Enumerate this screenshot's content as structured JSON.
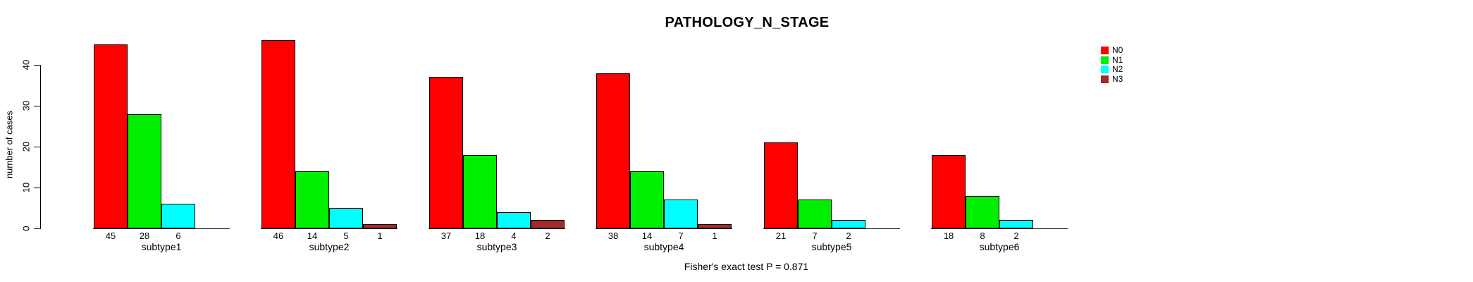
{
  "title": "PATHOLOGY_N_STAGE",
  "ylabel": "number of cases",
  "caption": "Fisher's exact test P = 0.871",
  "legend": [
    {
      "label": "N0",
      "color": "#FF0000"
    },
    {
      "label": "N1",
      "color": "#00EE00"
    },
    {
      "label": "N2",
      "color": "#00FFFF"
    },
    {
      "label": "N3",
      "color": "#A52A2A"
    }
  ],
  "chart_data": {
    "type": "bar",
    "title": "PATHOLOGY_N_STAGE",
    "xlabel": "",
    "ylabel": "number of cases",
    "ylim": [
      0,
      46
    ],
    "yticks": [
      0,
      10,
      20,
      30,
      40
    ],
    "grid": false,
    "legend_position": "right",
    "categories": [
      "subtype1",
      "subtype2",
      "subtype3",
      "subtype4",
      "subtype5",
      "subtype6"
    ],
    "series": [
      {
        "name": "N0",
        "color": "#FF0000",
        "values": [
          45,
          46,
          37,
          38,
          21,
          18
        ]
      },
      {
        "name": "N1",
        "color": "#00EE00",
        "values": [
          28,
          14,
          18,
          14,
          7,
          8
        ]
      },
      {
        "name": "N2",
        "color": "#00FFFF",
        "values": [
          6,
          5,
          4,
          7,
          2,
          2
        ]
      },
      {
        "name": "N3",
        "color": "#A52A2A",
        "values": [
          0,
          1,
          2,
          1,
          0,
          0
        ]
      }
    ],
    "annotations": [
      "Fisher's exact test P = 0.871"
    ]
  }
}
